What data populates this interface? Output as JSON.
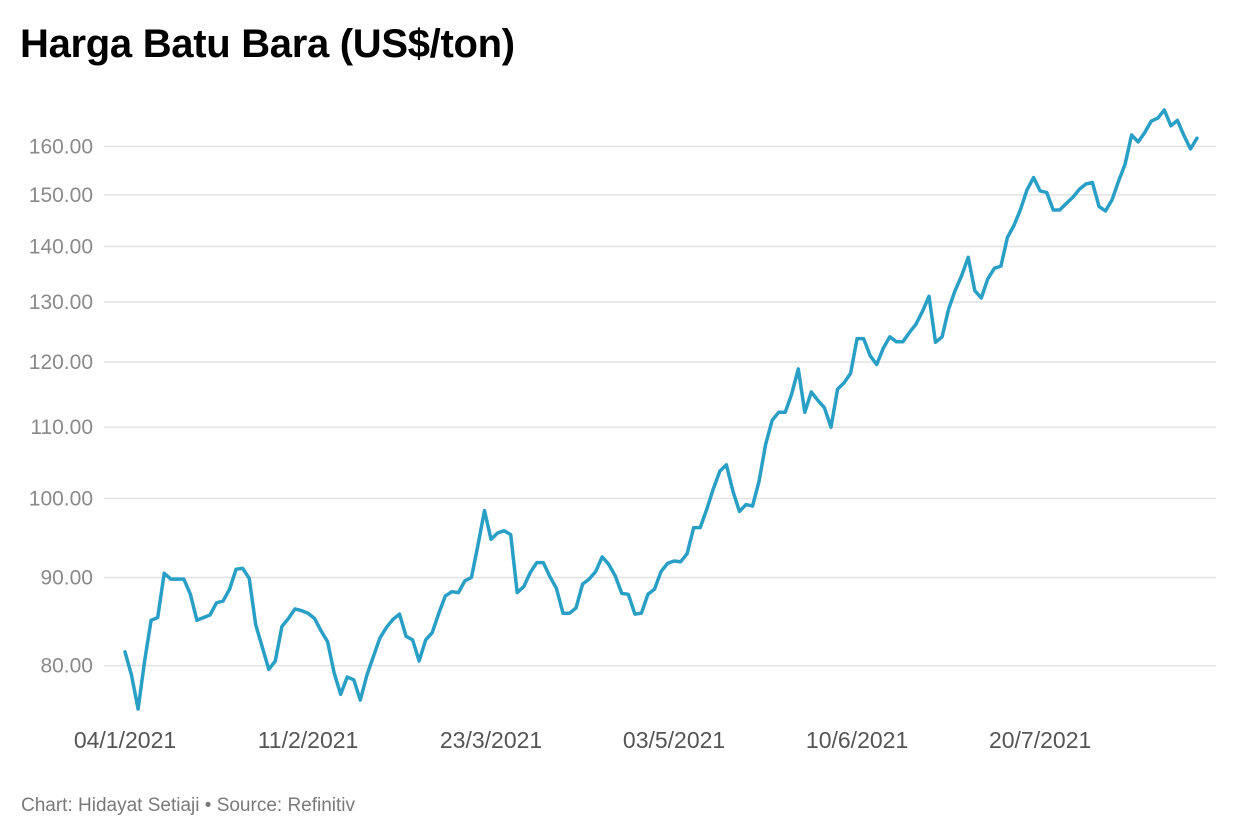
{
  "chart_title": "Harga Batu Bara (US$/ton)",
  "footer": {
    "credit": "Chart: Hidayat Setiaji",
    "separator": "•",
    "source": "Source: Refinitiv"
  },
  "colors": {
    "line": "#2a9fc6",
    "grid": "#e3e3e3",
    "title": "#000000"
  },
  "chart_data": {
    "type": "line",
    "title": "Harga Batu Bara (US$/ton)",
    "xlabel": "",
    "ylabel": "",
    "y_scale": "log",
    "ylim": [
      75,
      168
    ],
    "yticks": [
      80,
      90,
      100,
      110,
      120,
      130,
      140,
      150,
      160
    ],
    "ytick_labels": [
      "80.00",
      "90.00",
      "100.00",
      "110.00",
      "120.00",
      "130.00",
      "140.00",
      "150.00",
      "160.00"
    ],
    "xtick_labels": [
      "04/1/2021",
      "11/2/2021",
      "23/3/2021",
      "03/5/2021",
      "10/6/2021",
      "20/7/2021"
    ],
    "xtick_index": [
      0,
      28,
      56,
      84,
      112,
      140
    ],
    "grid": true,
    "legend": "none",
    "series": [
      {
        "values": [
          81.5,
          79.0,
          75.5,
          80.5,
          85.0,
          85.3,
          90.5,
          89.8,
          89.8,
          89.8,
          88.0,
          85.0,
          85.3,
          85.6,
          87.0,
          87.2,
          88.6,
          91.0,
          91.1,
          89.9,
          84.5,
          82.0,
          79.6,
          80.5,
          84.3,
          85.2,
          86.3,
          86.1,
          85.8,
          85.2,
          83.8,
          82.6,
          79.2,
          77.0,
          78.8,
          78.5,
          76.4,
          79.0,
          81.0,
          83.0,
          84.2,
          85.1,
          85.7,
          83.2,
          82.8,
          80.5,
          82.8,
          83.6,
          85.8,
          87.8,
          88.3,
          88.2,
          89.6,
          90.0,
          94.0,
          98.4,
          94.7,
          95.5,
          95.8,
          95.3,
          88.2,
          88.9,
          90.6,
          91.8,
          91.8,
          90.1,
          88.7,
          85.8,
          85.8,
          86.4,
          89.2,
          89.8,
          90.7,
          92.5,
          91.6,
          90.2,
          88.1,
          88.0,
          85.7,
          85.8,
          88.0,
          88.6,
          90.7,
          91.7,
          92.0,
          91.9,
          92.9,
          96.2,
          96.2,
          98.6,
          101.3,
          103.7,
          104.6,
          101.0,
          98.3,
          99.2,
          99.0,
          102.3,
          107.5,
          111.0,
          112.2,
          112.2,
          115.0,
          118.9,
          112.2,
          115.3,
          114.0,
          112.9,
          110.0,
          115.7,
          116.7,
          118.2,
          123.8,
          123.8,
          121.0,
          119.6,
          122.2,
          124.1,
          123.3,
          123.3,
          124.8,
          126.2,
          128.4,
          131.0,
          123.2,
          124.1,
          128.8,
          132.0,
          134.7,
          138.0,
          132.0,
          130.7,
          134.1,
          136.0,
          136.4,
          141.7,
          144.0,
          147.1,
          151.0,
          153.5,
          150.8,
          150.5,
          147.0,
          147.0,
          148.3,
          149.5,
          151.1,
          152.2,
          152.5,
          147.7,
          146.8,
          149.0,
          152.8,
          156.3,
          162.5,
          161.0,
          163.0,
          165.5,
          166.2,
          168.0,
          164.5,
          165.7,
          162.4,
          159.5,
          161.8
        ]
      }
    ]
  }
}
